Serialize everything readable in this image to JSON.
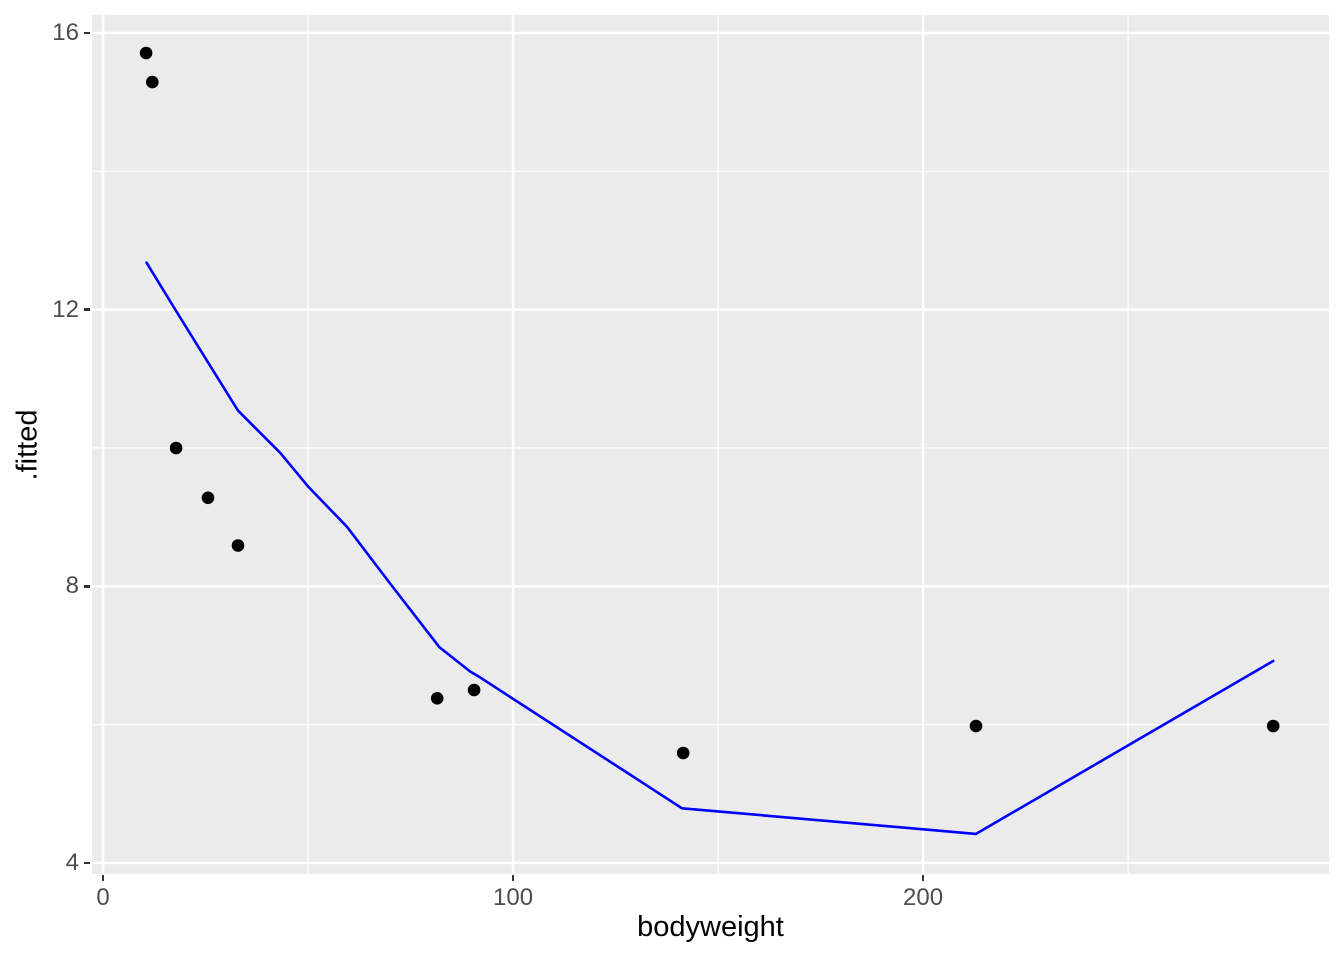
{
  "chart_data": {
    "type": "scatter",
    "title": "",
    "xlabel": "bodyweight",
    "ylabel": ".fitted",
    "legend_position": "none",
    "grid": true,
    "xlim": [
      -2.7,
      299.0
    ],
    "ylim": [
      3.84,
      16.26
    ],
    "x_major_ticks": [
      0,
      100,
      200
    ],
    "y_major_ticks": [
      4,
      8,
      12,
      16
    ],
    "x_minor_gridlines": [
      50,
      150,
      250
    ],
    "y_minor_gridlines": [
      6,
      10,
      14
    ],
    "points": [
      [
        10.5,
        15.71
      ],
      [
        12.0,
        15.29
      ],
      [
        17.8,
        10.0
      ],
      [
        25.6,
        9.28
      ],
      [
        32.9,
        8.59
      ],
      [
        81.5,
        6.38
      ],
      [
        90.5,
        6.5
      ],
      [
        141.5,
        5.59
      ],
      [
        212.9,
        5.98
      ],
      [
        285.4,
        5.98
      ]
    ],
    "smooth_line": {
      "points": [
        [
          10.6,
          12.68
        ],
        [
          17.8,
          11.98
        ],
        [
          26.1,
          11.19
        ],
        [
          32.9,
          10.54
        ],
        [
          43.2,
          9.93
        ],
        [
          50.2,
          9.43
        ],
        [
          59.5,
          8.86
        ],
        [
          70.0,
          8.04
        ],
        [
          82.0,
          7.12
        ],
        [
          89.5,
          6.77
        ],
        [
          91.5,
          6.7
        ],
        [
          141.2,
          4.79
        ],
        [
          212.9,
          4.42
        ],
        [
          285.4,
          6.92
        ]
      ]
    },
    "colors": {
      "panel_background": "#EBEBEB",
      "gridline": "#FFFFFF",
      "point": "#000000",
      "line": "#0000FF",
      "tick_label": "#4D4D4D",
      "axis_title": "#000000",
      "tick_mark": "#333333"
    },
    "style": {
      "point_radius": 6.3,
      "line_width": 2.6,
      "major_grid_width": 2.4,
      "minor_grid_width": 1.2
    }
  }
}
